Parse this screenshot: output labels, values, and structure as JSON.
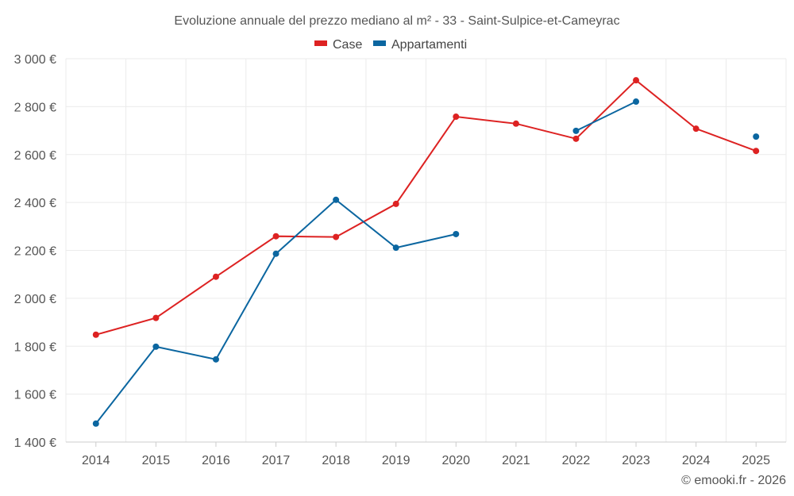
{
  "chart_data": {
    "type": "line",
    "title": "Evoluzione annuale del prezzo mediano al m² - 33 - Saint-Sulpice-et-Cameyrac",
    "xlabel": "",
    "ylabel": "",
    "x": [
      "2014",
      "2015",
      "2016",
      "2017",
      "2018",
      "2019",
      "2020",
      "2021",
      "2022",
      "2023",
      "2024",
      "2025"
    ],
    "ylim": [
      1400,
      3000
    ],
    "yticks": [
      1400,
      1600,
      1800,
      2000,
      2200,
      2400,
      2600,
      2800,
      3000
    ],
    "ytick_labels": [
      "1 400 €",
      "1 600 €",
      "1 800 €",
      "2 000 €",
      "2 200 €",
      "2 400 €",
      "2 600 €",
      "2 800 €",
      "3 000 €"
    ],
    "grid": true,
    "legend_position": "top-center",
    "series": [
      {
        "name": "Case",
        "color": "#dd2222",
        "values": [
          1848,
          1918,
          2090,
          2259,
          2256,
          2394,
          2758,
          2729,
          2666,
          2910,
          2708,
          2615
        ]
      },
      {
        "name": "Appartamenti",
        "color": "#0b66a0",
        "values": [
          1477,
          1798,
          1745,
          2186,
          2411,
          2211,
          2268,
          null,
          2699,
          2821,
          null,
          2675
        ]
      }
    ]
  },
  "footer": {
    "copyright": "© emooki.fr - 2026"
  }
}
